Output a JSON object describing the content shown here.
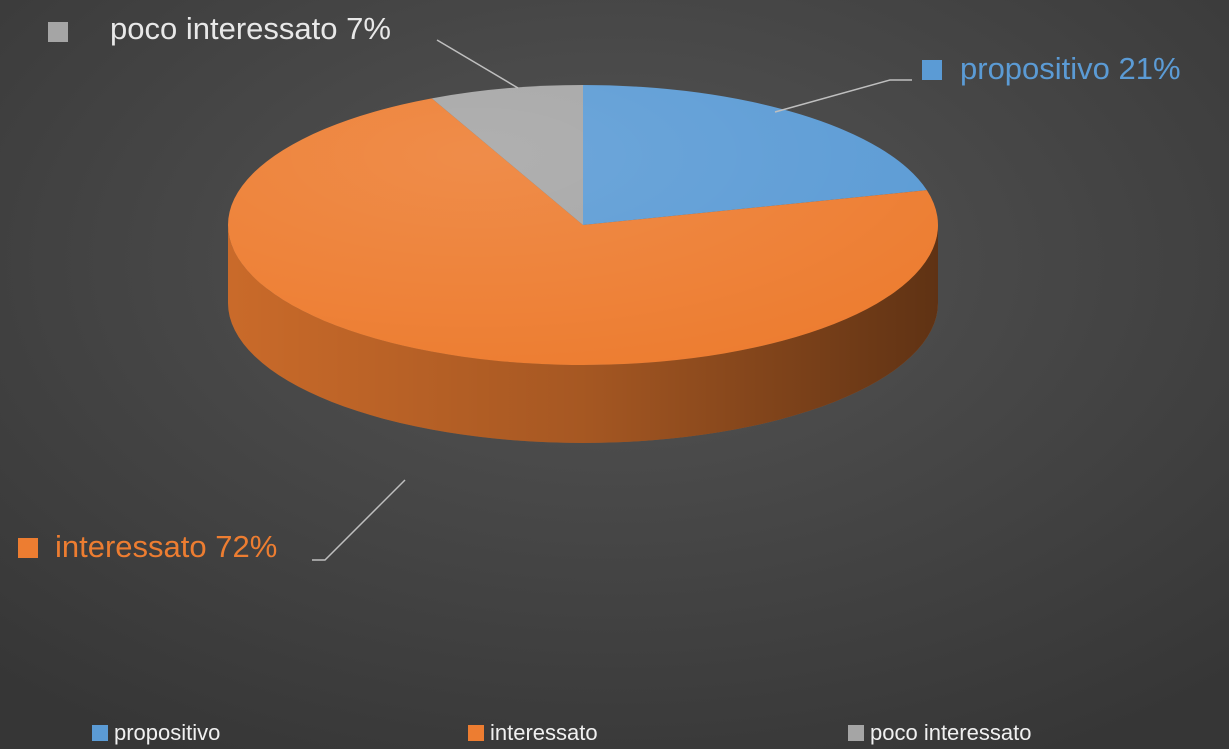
{
  "chart_data": {
    "type": "pie",
    "categories": [
      "propositivo",
      "interessato",
      "poco interessato"
    ],
    "values": [
      21,
      72,
      7
    ],
    "value_labels": [
      "propositivo 21%",
      "interessato 72%",
      "poco interessato 7%"
    ],
    "colors": [
      "#5b9bd5",
      "#ed7d31",
      "#a5a5a5"
    ],
    "legend": "bottom"
  }
}
